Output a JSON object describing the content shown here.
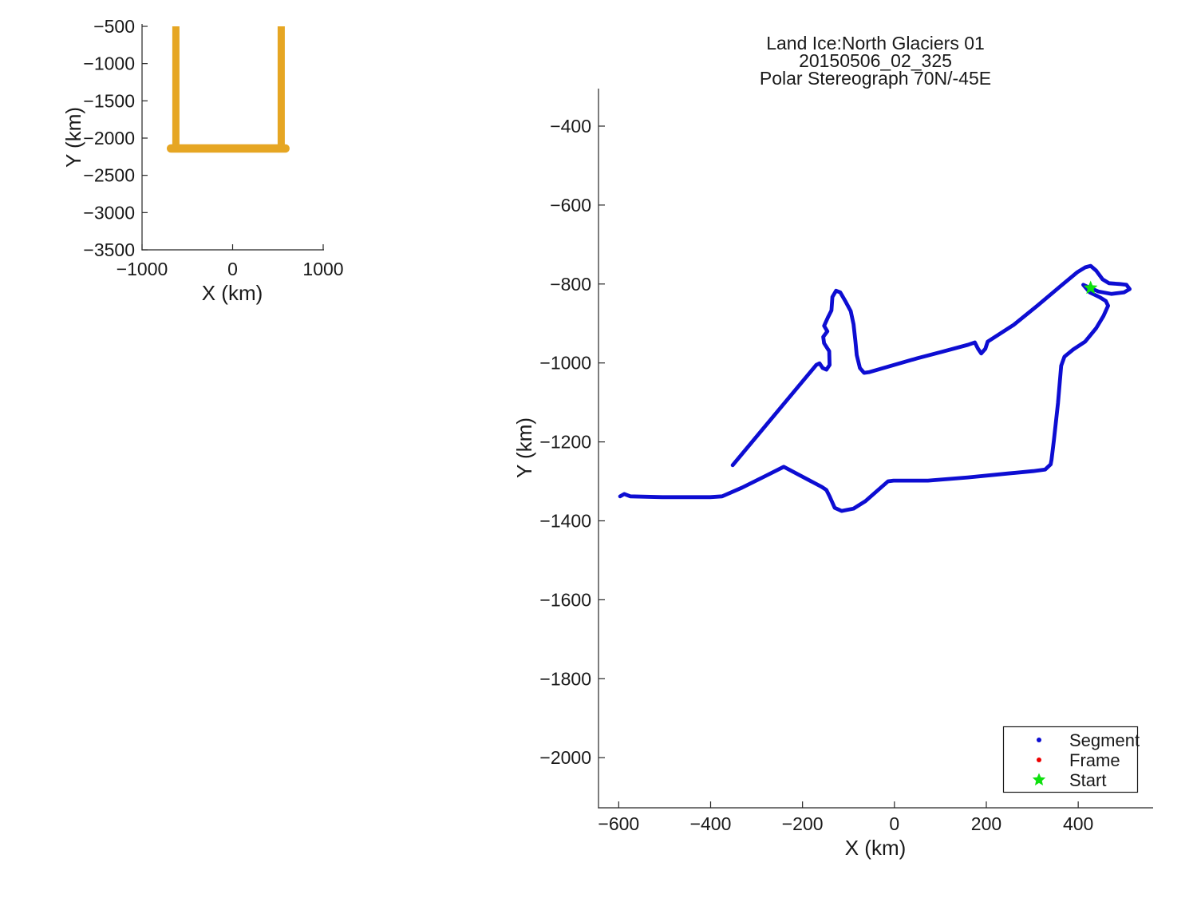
{
  "figure": {
    "background": "#ffffff",
    "text_color": "#1a1a1a",
    "axis_color": "#262626"
  },
  "chart_data": [
    {
      "id": "overview",
      "type": "line",
      "title": "",
      "xlabel": "X (km)",
      "ylabel": "Y (km)",
      "xlim": [
        -1000,
        1000
      ],
      "ylim": [
        -3500,
        -500
      ],
      "x_ticks": [
        -1000,
        0,
        1000
      ],
      "y_ticks": [
        -500,
        -1000,
        -1500,
        -2000,
        -2500,
        -3000,
        -3500
      ],
      "grid": false,
      "track_color": "#E6A623",
      "series": [
        {
          "name": "mission-track-west-leg",
          "kind": "polyline",
          "color": "#E6A623",
          "width": 9,
          "points": [
            [
              -626,
              -460
            ],
            [
              -626,
              -2108
            ]
          ]
        },
        {
          "name": "mission-track-east-leg",
          "kind": "polyline",
          "color": "#E6A623",
          "width": 9,
          "points": [
            [
              537,
              -460
            ],
            [
              537,
              -2139
            ]
          ]
        },
        {
          "name": "mission-track-south-leg",
          "kind": "polyline",
          "color": "#E6A623",
          "width": 10.5,
          "points": [
            [
              -681,
              -2139
            ],
            [
              583,
              -2139
            ]
          ]
        }
      ]
    },
    {
      "id": "main",
      "type": "line",
      "title_lines": [
        "Land Ice:North Glaciers 01",
        "20150506_02_325",
        "Polar Stereograph 70N/-45E"
      ],
      "xlabel": "X (km)",
      "ylabel": "Y (km)",
      "xlim": [
        -644,
        563
      ],
      "ylim": [
        -2127,
        -309
      ],
      "x_ticks": [
        -600,
        -400,
        -200,
        0,
        200,
        400
      ],
      "y_ticks": [
        -400,
        -600,
        -800,
        -1000,
        -1200,
        -1400,
        -1600,
        -1800,
        -2000
      ],
      "grid": false,
      "legend": {
        "position": "lower-right",
        "items": [
          {
            "label": "Segment",
            "marker": "dot",
            "color": "#0d0dd2"
          },
          {
            "label": "Frame",
            "marker": "dot",
            "color": "#ee0000"
          },
          {
            "label": "Start",
            "marker": "star",
            "color": "#0ee00e"
          }
        ]
      },
      "series": [
        {
          "name": "segment-track",
          "kind": "polyline",
          "color": "#0d0dd2",
          "width": 4.8,
          "points": [
            [
              -352,
              -1259
            ],
            [
              -170,
              -1005
            ],
            [
              -163,
              -1001
            ],
            [
              -156,
              -1013
            ],
            [
              -148,
              -1017
            ],
            [
              -141,
              -1005
            ],
            [
              -142,
              -970
            ],
            [
              -153,
              -950
            ],
            [
              -155,
              -934
            ],
            [
              -146,
              -920
            ],
            [
              -153,
              -906
            ],
            [
              -144,
              -883
            ],
            [
              -137,
              -867
            ],
            [
              -135,
              -833
            ],
            [
              -127,
              -817
            ],
            [
              -118,
              -821
            ],
            [
              -106,
              -845
            ],
            [
              -95,
              -869
            ],
            [
              -89,
              -902
            ],
            [
              -85,
              -944
            ],
            [
              -82,
              -980
            ],
            [
              -75,
              -1013
            ],
            [
              -66,
              -1025
            ],
            [
              -54,
              -1023
            ],
            [
              50,
              -988
            ],
            [
              102,
              -972
            ],
            [
              160,
              -954
            ],
            [
              175,
              -948
            ],
            [
              182,
              -964
            ],
            [
              189,
              -976
            ],
            [
              198,
              -964
            ],
            [
              203,
              -946
            ],
            [
              259,
              -904
            ],
            [
              311,
              -855
            ],
            [
              363,
              -804
            ],
            [
              398,
              -770
            ],
            [
              415,
              -758
            ],
            [
              427,
              -754
            ],
            [
              439,
              -766
            ],
            [
              453,
              -788
            ],
            [
              467,
              -798
            ],
            [
              490,
              -800
            ],
            [
              505,
              -802
            ],
            [
              512,
              -813
            ],
            [
              500,
              -821
            ],
            [
              472,
              -825
            ],
            [
              444,
              -819
            ],
            [
              422,
              -808
            ],
            [
              411,
              -802
            ],
            [
              425,
              -821
            ],
            [
              446,
              -833
            ],
            [
              460,
              -843
            ],
            [
              465,
              -855
            ],
            [
              455,
              -881
            ],
            [
              439,
              -912
            ],
            [
              415,
              -946
            ],
            [
              389,
              -966
            ],
            [
              370,
              -984
            ],
            [
              363,
              -1007
            ],
            [
              356,
              -1102
            ],
            [
              347,
              -1197
            ],
            [
              342,
              -1245
            ],
            [
              340,
              -1257
            ],
            [
              328,
              -1270
            ],
            [
              302,
              -1274
            ],
            [
              247,
              -1280
            ],
            [
              160,
              -1290
            ],
            [
              73,
              -1298
            ],
            [
              -2,
              -1298
            ],
            [
              -14,
              -1300
            ],
            [
              -63,
              -1350
            ],
            [
              -89,
              -1369
            ],
            [
              -115,
              -1375
            ],
            [
              -130,
              -1367
            ],
            [
              -141,
              -1338
            ],
            [
              -148,
              -1322
            ],
            [
              -158,
              -1314
            ],
            [
              -241,
              -1263
            ],
            [
              -280,
              -1286
            ],
            [
              -332,
              -1316
            ],
            [
              -375,
              -1338
            ],
            [
              -401,
              -1340
            ],
            [
              -505,
              -1340
            ],
            [
              -575,
              -1338
            ],
            [
              -588,
              -1332
            ],
            [
              -597,
              -1338
            ]
          ]
        },
        {
          "name": "start-marker",
          "kind": "star",
          "color": "#0ee00e",
          "point": [
            427,
            -810
          ],
          "outer_radius": 9.2,
          "inner_radius": 4.1
        }
      ]
    }
  ]
}
